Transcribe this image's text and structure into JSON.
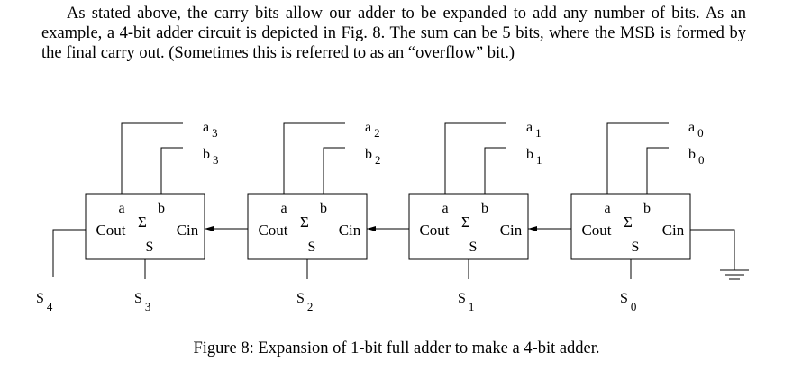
{
  "paragraph": "As stated above, the carry bits allow our adder to be expanded to add any number of bits. As an example, a 4-bit adder circuit is depicted in Fig. 8. The sum can be 5 bits, where the MSB is formed by the final carry out. (Sometimes this is referred to as an “overflow” bit.)",
  "caption": "Figure 8: Expansion of 1-bit full adder to make a 4-bit adder.",
  "adder": {
    "input_a": "a",
    "input_b": "b",
    "carry_out": "Cout",
    "carry_in": "Cin",
    "sum_symbol": "Σ",
    "sum_out": "S"
  },
  "stages": [
    {
      "a_base": "a",
      "a_sub": "3",
      "b_base": "b",
      "b_sub": "3",
      "s_base": "S",
      "s_sub": "3"
    },
    {
      "a_base": "a",
      "a_sub": "2",
      "b_base": "b",
      "b_sub": "2",
      "s_base": "S",
      "s_sub": "2"
    },
    {
      "a_base": "a",
      "a_sub": "1",
      "b_base": "b",
      "b_sub": "1",
      "s_base": "S",
      "s_sub": "1"
    },
    {
      "a_base": "a",
      "a_sub": "0",
      "b_base": "b",
      "b_sub": "0",
      "s_base": "S",
      "s_sub": "0"
    }
  ],
  "overflow": {
    "base": "S",
    "sub": "4"
  }
}
